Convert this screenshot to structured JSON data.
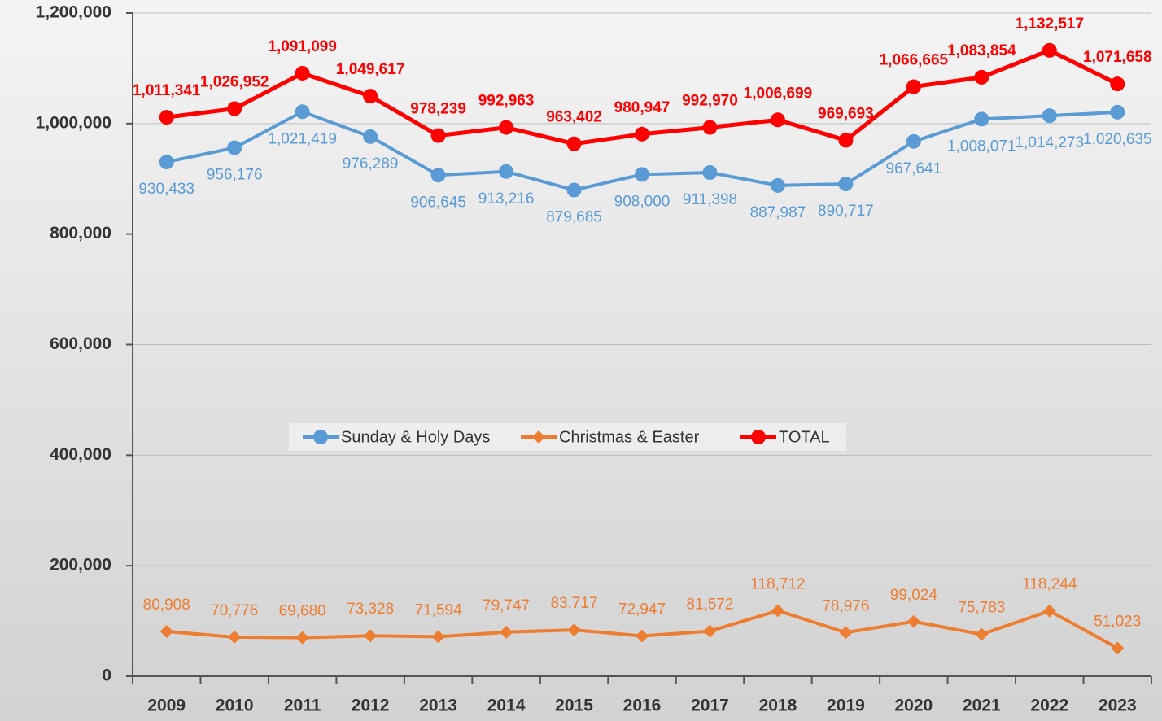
{
  "chart_data": {
    "type": "line",
    "categories": [
      "2009",
      "2010",
      "2011",
      "2012",
      "2013",
      "2014",
      "2015",
      "2016",
      "2017",
      "2018",
      "2019",
      "2020",
      "2021",
      "2022",
      "2023"
    ],
    "series": [
      {
        "name": "Sunday & Holy Days",
        "color": "#5b9bd5",
        "marker": "circle",
        "values": [
          930433,
          956176,
          1021419,
          976289,
          906645,
          913216,
          879685,
          908000,
          911398,
          887987,
          890717,
          967641,
          1008071,
          1014273,
          1020635
        ],
        "value_labels": [
          "930,433",
          "956,176",
          "1,021,419",
          "976,289",
          "906,645",
          "913,216",
          "879,685",
          "908,000",
          "911,398",
          "887,987",
          "890,717",
          "967,641",
          "1,008,071",
          "1,014,273",
          "1,020,635"
        ]
      },
      {
        "name": "Christmas & Easter",
        "color": "#ed7d31",
        "marker": "diamond",
        "values": [
          80908,
          70776,
          69680,
          73328,
          71594,
          79747,
          83717,
          72947,
          81572,
          118712,
          78976,
          99024,
          75783,
          118244,
          51023
        ],
        "value_labels": [
          "80,908",
          "70,776",
          "69,680",
          "73,328",
          "71,594",
          "79,747",
          "83,717",
          "72,947",
          "81,572",
          "118,712",
          "78,976",
          "99,024",
          "75,783",
          "118,244",
          "51,023"
        ]
      },
      {
        "name": "TOTAL",
        "color": "#ff0000",
        "marker": "circle",
        "values": [
          1011341,
          1026952,
          1091099,
          1049617,
          978239,
          992963,
          963402,
          980947,
          992970,
          1006699,
          969693,
          1066665,
          1083854,
          1132517,
          1071658
        ],
        "value_labels": [
          "1,011,341",
          "1,026,952",
          "1,091,099",
          "1,049,617",
          "978,239",
          "992,963",
          "963,402",
          "980,947",
          "992,970",
          "1,006,699",
          "969,693",
          "1,066,665",
          "1,083,854",
          "1,132,517",
          "1,071,658"
        ]
      }
    ],
    "ylim": [
      0,
      1200000
    ],
    "yticks": [
      0,
      {
        "value": 200000,
        "label": "200,000"
      },
      {
        "value": 400000,
        "label": "400,000"
      },
      {
        "value": 600000,
        "label": "600,000"
      },
      {
        "value": 800000,
        "label": "800,000"
      },
      {
        "value": 1000000,
        "label": "1,000,000"
      },
      {
        "value": 1200000,
        "label": "1,200,000"
      }
    ],
    "grid": true,
    "legend": "center"
  }
}
